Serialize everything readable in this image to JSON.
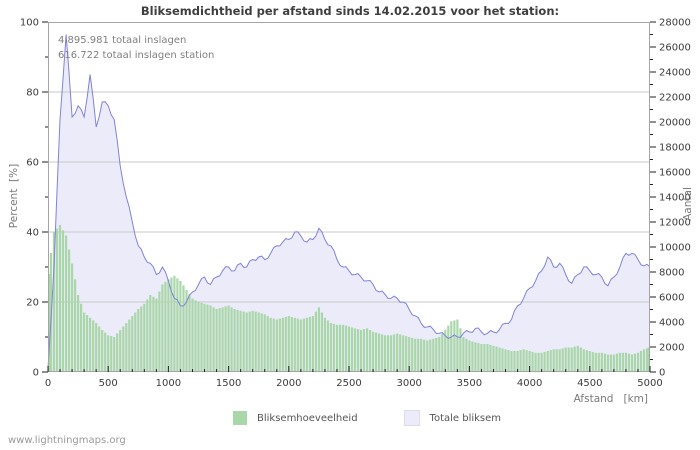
{
  "title": "Bliksemdichtheid per afstand sinds 14.02.2015 voor het station:",
  "annotations": {
    "line1": "4.895.981 totaal inslagen",
    "line2": "616.722 totaal inslagen station"
  },
  "watermark": "www.lightningmaps.org",
  "colors": {
    "bars": "#aad7aa",
    "line": "#8182d9",
    "area_fill": "#ecebf9",
    "grid": "#c9c9c9",
    "border": "#a5a5a5",
    "tick": "#222222",
    "tick_label": "#3c3c3c",
    "muted_text": "#7a7a7a"
  },
  "legend": [
    {
      "label": "Bliksemhoeveelheid",
      "swatch": "#aad7aa",
      "series_type": "bar"
    },
    {
      "label": "Totale bliksem",
      "swatch": "#ecebf9",
      "series_type": "area-line"
    }
  ],
  "chart_data": {
    "type": "combo-bar-line",
    "title": "Bliksemdichtheid per afstand sinds 14.02.2015 voor het station:",
    "x_label": "Afstand   [km]",
    "y_left_label": "Percent  [%]",
    "y_right_label": "Aantal",
    "grid": "horizontal-major",
    "legend_position": "bottom-center",
    "x_axis": {
      "min": 0,
      "max": 5000,
      "tick_step": 500,
      "minor_step": 100
    },
    "y_left_axis": {
      "min": 0,
      "max": 100,
      "tick_step": 20,
      "minor_step": 10
    },
    "y_right_axis": {
      "min": 0,
      "max": 28000,
      "tick_step": 2000,
      "minor_step": 1000
    },
    "x": [
      0,
      50,
      100,
      150,
      200,
      250,
      300,
      350,
      400,
      450,
      500,
      550,
      600,
      650,
      700,
      750,
      800,
      850,
      900,
      950,
      1000,
      1050,
      1100,
      1150,
      1200,
      1250,
      1300,
      1350,
      1400,
      1450,
      1500,
      1550,
      1600,
      1650,
      1700,
      1750,
      1800,
      1850,
      1900,
      1950,
      2000,
      2050,
      2100,
      2150,
      2200,
      2250,
      2300,
      2350,
      2400,
      2450,
      2500,
      2550,
      2600,
      2650,
      2700,
      2750,
      2800,
      2850,
      2900,
      2950,
      3000,
      3050,
      3100,
      3150,
      3200,
      3250,
      3300,
      3350,
      3400,
      3450,
      3500,
      3550,
      3600,
      3650,
      3700,
      3750,
      3800,
      3850,
      3900,
      3950,
      4000,
      4050,
      4100,
      4150,
      4200,
      4250,
      4300,
      4350,
      4400,
      4450,
      4500,
      4550,
      4600,
      4650,
      4700,
      4750,
      4800,
      4850,
      4900,
      4950,
      5000
    ],
    "series": [
      {
        "name": "Bliksemhoeveelheid",
        "axis": "left",
        "style": "bar",
        "unit": "%",
        "values": [
          28,
          40,
          42,
          39,
          31,
          22,
          17,
          15.5,
          14,
          12,
          10.5,
          10,
          12,
          14,
          16,
          18,
          19.5,
          22,
          21,
          25,
          26.5,
          27.5,
          26,
          23.5,
          21,
          20,
          19.5,
          19,
          18,
          18.5,
          19,
          18,
          17.5,
          17,
          17.5,
          17,
          16.5,
          15.5,
          15,
          15.5,
          16,
          15.5,
          15,
          15.5,
          16,
          18.5,
          15.5,
          14,
          13.5,
          13.5,
          13,
          12.5,
          12,
          12.5,
          11.5,
          11,
          10.5,
          10.5,
          11,
          10.5,
          10,
          9.5,
          9.5,
          9,
          9.5,
          10,
          12,
          14.5,
          15,
          10,
          9,
          8.5,
          8,
          8,
          7.5,
          7,
          6.5,
          6,
          6,
          6.5,
          6,
          5.5,
          5.5,
          6,
          6.5,
          6.5,
          7,
          7,
          7.5,
          6.5,
          6,
          5.5,
          5.5,
          5,
          5,
          5.5,
          5.5,
          5,
          5.5,
          6.5,
          7
        ]
      },
      {
        "name": "Totale bliksem",
        "axis": "right",
        "style": "area-line",
        "unit": "aantal",
        "values": [
          300,
          8400,
          20200,
          27000,
          20400,
          21300,
          20400,
          23800,
          19600,
          21600,
          21300,
          20200,
          16500,
          14000,
          12000,
          10100,
          9200,
          8700,
          7800,
          8400,
          7300,
          5900,
          5300,
          5600,
          6400,
          7000,
          7600,
          7000,
          7600,
          8100,
          8400,
          8100,
          8700,
          8400,
          9000,
          9200,
          9000,
          9500,
          10100,
          10400,
          10600,
          11200,
          10900,
          10400,
          10600,
          11500,
          10600,
          10100,
          9000,
          8400,
          8100,
          7800,
          7600,
          7300,
          7000,
          6400,
          6200,
          5900,
          5900,
          5600,
          5000,
          4500,
          3900,
          3600,
          3400,
          3100,
          2900,
          2800,
          2800,
          3100,
          3200,
          3500,
          3200,
          3100,
          3200,
          3400,
          3900,
          4200,
          5300,
          5900,
          6700,
          7300,
          8100,
          9200,
          8400,
          8700,
          7800,
          7100,
          7800,
          8400,
          8100,
          7800,
          7600,
          6900,
          7600,
          8400,
          9500,
          9500,
          9000,
          8500,
          8400
        ]
      }
    ]
  }
}
